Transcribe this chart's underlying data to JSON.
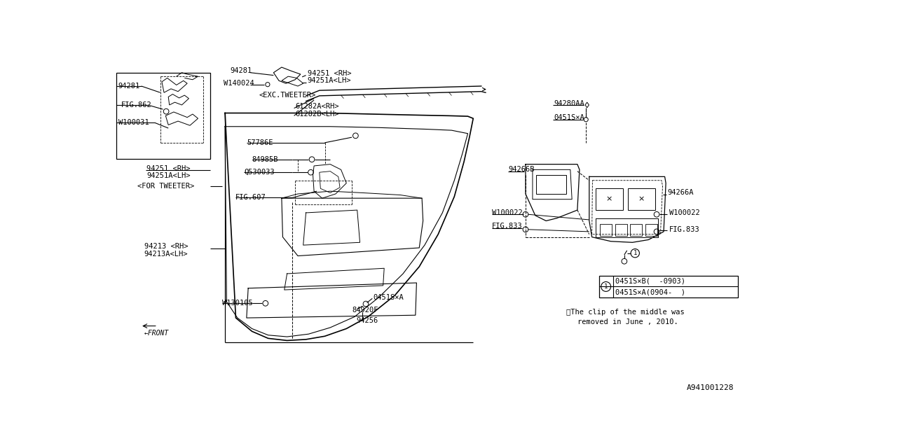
{
  "bg_color": "#ffffff",
  "line_color": "#000000",
  "fig_width": 12.8,
  "fig_height": 6.4,
  "footer_id": "A941001228",
  "note_line1": "※The clip of the middle was",
  "note_line2": "removed in June , 2010.",
  "legend_row1": "0451S×B(  -0903)",
  "legend_row2": "0451S×A(0904-  )",
  "labels": {
    "94281_top": "94281",
    "W140024": "W140024",
    "94251_rh_top": "94251 <RH>",
    "94251A_lh_top": "94251A<LH>",
    "exc_tweeter": "<EXC.TWEETER>",
    "61282A_rh": "61282A<RH>",
    "61282B_lh": "61282B<LH>",
    "57786E": "57786E",
    "84985B": "84985B",
    "Q530033": "Q530033",
    "FIG607": "FIG.607",
    "94281_left": "94281",
    "FIG862": "FIG.862",
    "W100031": "W100031",
    "94251_rh_left": "94251 <RH>",
    "94251A_lh_left": "94251A<LH>",
    "for_tweeter": "<FOR TWEETER>",
    "94213_rh": "94213 <RH>",
    "94213A_lh": "94213A<LH>",
    "W130105": "W130105",
    "94256": "94256",
    "84920F": "84920F",
    "0451S_A_bottom": "0451S×A",
    "94280AA": "94280AA",
    "0451S_A_right": "0451S×A",
    "94266B": "94266B",
    "94266A": "94266A",
    "W100022_left": "W100022",
    "W100022_right": "W100022",
    "FIG833_left": "FIG.833",
    "FIG833_right": "FIG.833",
    "FRONT": "←FRONT"
  }
}
